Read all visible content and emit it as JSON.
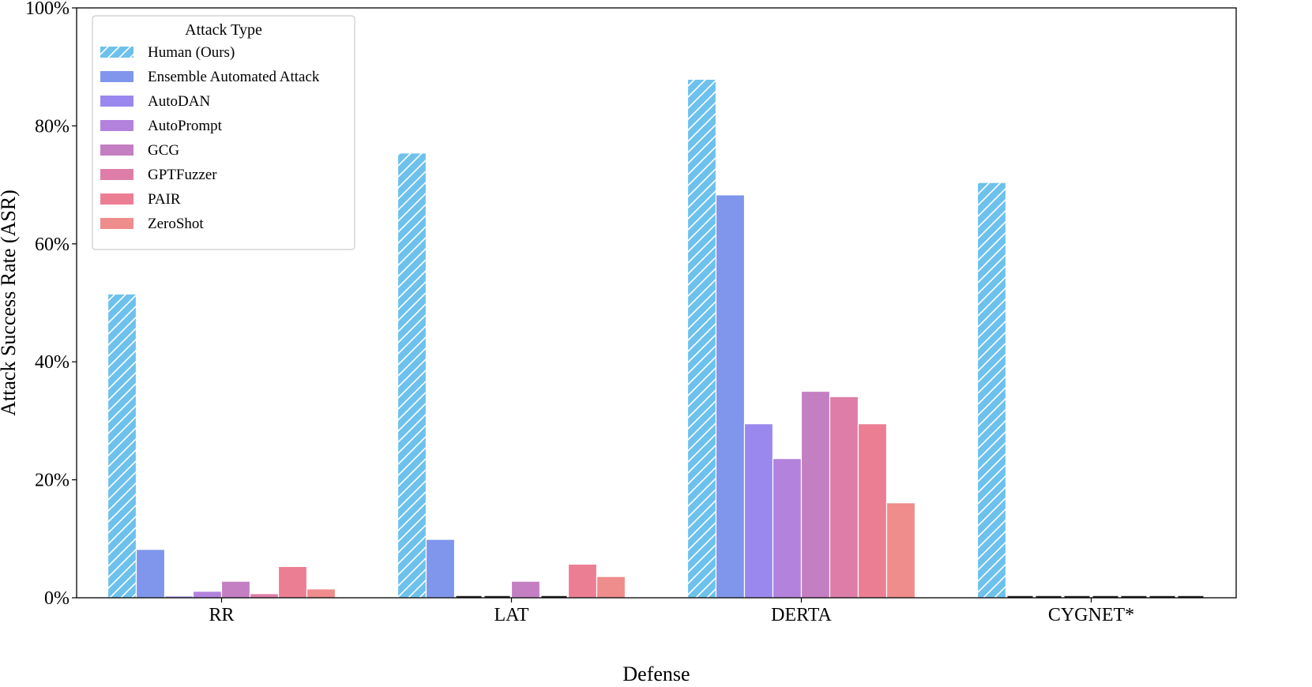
{
  "chart_data": {
    "type": "bar",
    "xlabel": "Defense",
    "ylabel": "Attack Success Rate (ASR)",
    "ylim": [
      0,
      100
    ],
    "yticks": [
      "0%",
      "20%",
      "40%",
      "60%",
      "80%",
      "100%"
    ],
    "categories": [
      "RR",
      "LAT",
      "DERTA",
      "CYGNET*"
    ],
    "grid": false,
    "legend": {
      "title": "Attack Type",
      "position": "top-left"
    },
    "series": [
      {
        "name": "Human (Ours)",
        "color": "#6ec1ec",
        "hatch": true,
        "values": [
          51.5,
          75.4,
          87.9,
          70.4
        ]
      },
      {
        "name": "Ensemble Automated Attack",
        "color": "#7f96ec",
        "values": [
          8.2,
          9.9,
          68.3,
          0.2
        ]
      },
      {
        "name": "AutoDAN",
        "color": "#9b88ee",
        "values": [
          0.3,
          0.2,
          29.5,
          0.2
        ]
      },
      {
        "name": "AutoPrompt",
        "color": "#b282dc",
        "values": [
          1.1,
          0.2,
          23.6,
          0.0
        ]
      },
      {
        "name": "GCG",
        "color": "#c47ec2",
        "values": [
          2.8,
          2.8,
          35.0,
          0.2
        ]
      },
      {
        "name": "GPTFuzzer",
        "color": "#de7da8",
        "values": [
          0.7,
          0.2,
          34.1,
          0.0
        ]
      },
      {
        "name": "PAIR",
        "color": "#ec7e94",
        "values": [
          5.3,
          5.7,
          29.5,
          0.2
        ]
      },
      {
        "name": "ZeroShot",
        "color": "#ef8c8c",
        "values": [
          1.5,
          3.6,
          16.1,
          0.0
        ]
      }
    ]
  }
}
